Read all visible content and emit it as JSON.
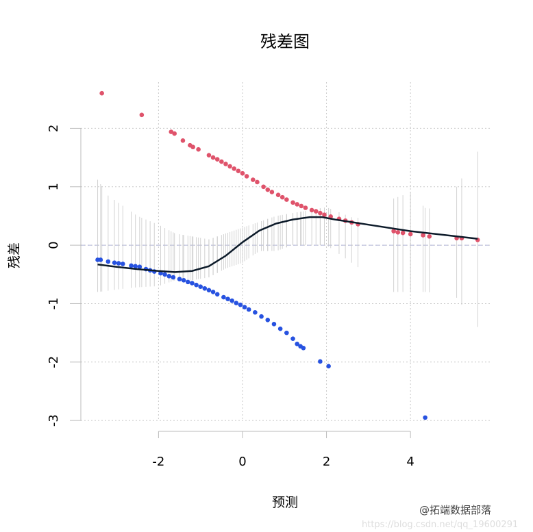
{
  "chart_data": {
    "type": "scatter",
    "title": "残差图",
    "xlabel": "预测",
    "ylabel": "残差",
    "xlim": [
      -3.85,
      5.89
    ],
    "ylim": [
      -3.01,
      2.79
    ],
    "xticks": [
      -2,
      0,
      2,
      4
    ],
    "yticks": [
      -3,
      -2,
      -1,
      0,
      1,
      2
    ],
    "xtick_labels": [
      "-2",
      "0",
      "2",
      "4"
    ],
    "ytick_labels": [
      "-3",
      "-2",
      "-1",
      "0",
      "1",
      "2"
    ],
    "grid": true,
    "reference_line": 0,
    "colors": {
      "positive": "#df536b",
      "negative": "#2752e0",
      "smooth": "#0d1b2a",
      "interval": "#c8c8c8",
      "grid": "#c8c8c8",
      "zero_line": "#b0b4d8"
    },
    "series": [
      {
        "color": "#df536b",
        "points": [
          [
            -3.35,
            2.6
          ],
          [
            -2.4,
            2.23
          ],
          [
            -1.7,
            1.94
          ],
          [
            -1.62,
            1.91
          ],
          [
            -1.42,
            1.79
          ],
          [
            -1.25,
            1.71
          ],
          [
            -1.18,
            1.68
          ],
          [
            -1.05,
            1.64
          ],
          [
            -0.8,
            1.54
          ],
          [
            -0.7,
            1.5
          ],
          [
            -0.6,
            1.47
          ],
          [
            -0.5,
            1.43
          ],
          [
            -0.4,
            1.39
          ],
          [
            -0.3,
            1.35
          ],
          [
            -0.2,
            1.31
          ],
          [
            -0.1,
            1.27
          ],
          [
            0.0,
            1.23
          ],
          [
            0.1,
            1.18
          ],
          [
            0.25,
            1.12
          ],
          [
            0.35,
            1.08
          ],
          [
            0.5,
            1.0
          ],
          [
            0.6,
            0.95
          ],
          [
            0.7,
            0.91
          ],
          [
            0.85,
            0.86
          ],
          [
            0.95,
            0.82
          ],
          [
            1.05,
            0.78
          ],
          [
            1.2,
            0.73
          ],
          [
            1.3,
            0.7
          ],
          [
            1.4,
            0.67
          ],
          [
            1.5,
            0.64
          ],
          [
            1.65,
            0.6
          ],
          [
            1.75,
            0.58
          ],
          [
            1.85,
            0.55
          ],
          [
            1.95,
            0.52
          ],
          [
            2.1,
            0.49
          ],
          [
            2.3,
            0.45
          ],
          [
            2.45,
            0.42
          ],
          [
            2.6,
            0.39
          ],
          [
            2.75,
            0.36
          ],
          [
            3.6,
            0.24
          ],
          [
            3.7,
            0.22
          ],
          [
            3.82,
            0.21
          ],
          [
            4.0,
            0.19
          ],
          [
            4.3,
            0.17
          ],
          [
            4.45,
            0.15
          ],
          [
            5.1,
            0.12
          ],
          [
            5.22,
            0.12
          ],
          [
            5.6,
            0.09
          ]
        ]
      },
      {
        "color": "#2752e0",
        "points": [
          [
            -3.45,
            -0.25
          ],
          [
            -3.38,
            -0.25
          ],
          [
            -3.2,
            -0.28
          ],
          [
            -3.05,
            -0.3
          ],
          [
            -2.95,
            -0.31
          ],
          [
            -2.85,
            -0.32
          ],
          [
            -2.65,
            -0.35
          ],
          [
            -2.55,
            -0.36
          ],
          [
            -2.45,
            -0.37
          ],
          [
            -2.3,
            -0.41
          ],
          [
            -2.2,
            -0.43
          ],
          [
            -2.1,
            -0.45
          ],
          [
            -1.95,
            -0.48
          ],
          [
            -1.85,
            -0.5
          ],
          [
            -1.75,
            -0.53
          ],
          [
            -1.65,
            -0.55
          ],
          [
            -1.5,
            -0.58
          ],
          [
            -1.4,
            -0.6
          ],
          [
            -1.3,
            -0.63
          ],
          [
            -1.2,
            -0.65
          ],
          [
            -1.1,
            -0.68
          ],
          [
            -1.0,
            -0.71
          ],
          [
            -0.9,
            -0.74
          ],
          [
            -0.8,
            -0.77
          ],
          [
            -0.7,
            -0.8
          ],
          [
            -0.6,
            -0.84
          ],
          [
            -0.45,
            -0.89
          ],
          [
            -0.35,
            -0.92
          ],
          [
            -0.25,
            -0.95
          ],
          [
            -0.15,
            -0.99
          ],
          [
            -0.05,
            -1.02
          ],
          [
            0.05,
            -1.06
          ],
          [
            0.15,
            -1.1
          ],
          [
            0.3,
            -1.15
          ],
          [
            0.45,
            -1.22
          ],
          [
            0.6,
            -1.28
          ],
          [
            0.75,
            -1.35
          ],
          [
            0.9,
            -1.43
          ],
          [
            1.05,
            -1.5
          ],
          [
            1.2,
            -1.6
          ],
          [
            1.3,
            -1.69
          ],
          [
            1.38,
            -1.73
          ],
          [
            1.45,
            -1.76
          ],
          [
            1.85,
            -1.99
          ],
          [
            2.05,
            -2.07
          ],
          [
            4.35,
            -2.95
          ]
        ]
      }
    ],
    "smooth": [
      [
        -3.45,
        -0.33
      ],
      [
        -3.0,
        -0.37
      ],
      [
        -2.5,
        -0.41
      ],
      [
        -2.0,
        -0.44
      ],
      [
        -1.6,
        -0.46
      ],
      [
        -1.2,
        -0.44
      ],
      [
        -0.8,
        -0.36
      ],
      [
        -0.4,
        -0.18
      ],
      [
        0.0,
        0.05
      ],
      [
        0.4,
        0.25
      ],
      [
        0.8,
        0.37
      ],
      [
        1.2,
        0.44
      ],
      [
        1.6,
        0.48
      ],
      [
        1.9,
        0.48
      ],
      [
        2.2,
        0.44
      ],
      [
        3.0,
        0.35
      ],
      [
        4.0,
        0.24
      ],
      [
        5.0,
        0.16
      ],
      [
        5.6,
        0.11
      ]
    ],
    "intervals": [
      [
        -3.45,
        -0.8,
        1.12
      ],
      [
        -3.2,
        -0.78,
        0.85
      ],
      [
        -2.9,
        -0.75,
        0.7
      ],
      [
        -2.5,
        -0.72,
        0.5
      ],
      [
        -2.0,
        -0.7,
        0.35
      ],
      [
        -1.6,
        -0.6,
        0.2
      ],
      [
        -1.2,
        -0.6,
        0.15
      ],
      [
        -0.8,
        -0.55,
        0.1
      ],
      [
        -0.4,
        -0.4,
        0.2
      ],
      [
        0.0,
        -0.3,
        0.3
      ],
      [
        0.4,
        -0.1,
        0.4
      ],
      [
        0.8,
        -0.1,
        0.5
      ],
      [
        1.2,
        0.0,
        0.55
      ],
      [
        1.6,
        0.0,
        0.6
      ],
      [
        2.0,
        0.0,
        0.65
      ],
      [
        2.7,
        -0.35,
        0.45
      ],
      [
        3.6,
        -0.8,
        0.8
      ],
      [
        4.0,
        -0.8,
        0.9
      ],
      [
        4.4,
        -0.8,
        0.6
      ],
      [
        5.1,
        -0.9,
        1.0
      ],
      [
        5.6,
        -1.4,
        1.6
      ]
    ]
  },
  "watermark": {
    "brand": "@拓端数据部落",
    "url": "https://blog.csdn.net/qq_19600291"
  }
}
